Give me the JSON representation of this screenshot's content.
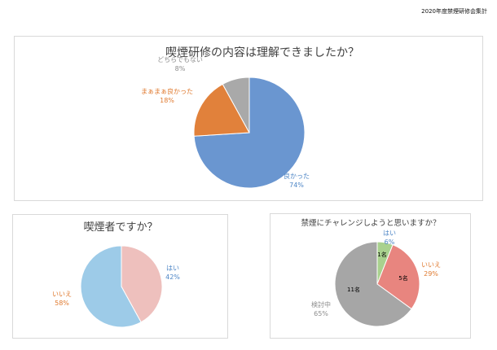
{
  "page_header": "2020年度禁煙研修会集計",
  "chart_data": [
    {
      "type": "pie",
      "title": "喫煙研修の内容は理解できましたか？",
      "slices": [
        {
          "label": "良かった",
          "value": 74,
          "display": "74%",
          "color": "#6a96d0",
          "label_color": "#4e86c6"
        },
        {
          "label": "まぁまぁ良かった",
          "value": 18,
          "display": "18%",
          "color": "#e1813b",
          "label_color": "#e07b31"
        },
        {
          "label": "どちらでもない",
          "value": 8,
          "display": "8%",
          "color": "#a9a9a9",
          "label_color": "#8c8c8c"
        }
      ]
    },
    {
      "type": "pie",
      "title": "喫煙者ですか？",
      "slices": [
        {
          "label": "はい",
          "value": 42,
          "display": "42%",
          "color": "#eec0bd",
          "label_color": "#4e86c6"
        },
        {
          "label": "いいえ",
          "value": 58,
          "display": "58%",
          "color": "#9dcbe8",
          "label_color": "#e07b31"
        }
      ]
    },
    {
      "type": "pie",
      "title": "禁煙にチャレンジしようと思いますか？",
      "slices": [
        {
          "label": "はい",
          "value": 6,
          "display": "6%",
          "count": "1名",
          "color": "#a9d18e",
          "label_color": "#4e86c6"
        },
        {
          "label": "いいえ",
          "value": 29,
          "display": "29%",
          "count": "5名",
          "color": "#e8857f",
          "label_color": "#e07b31"
        },
        {
          "label": "検討中",
          "value": 65,
          "display": "65%",
          "count": "11名",
          "color": "#a6a6a6",
          "label_color": "#8c8c8c"
        }
      ]
    }
  ]
}
